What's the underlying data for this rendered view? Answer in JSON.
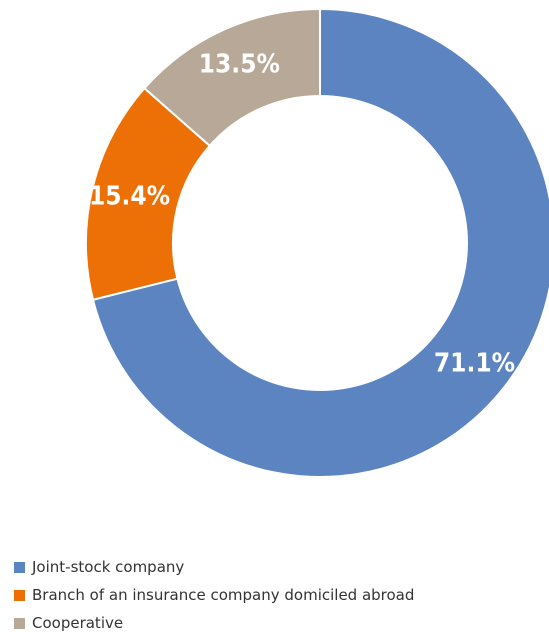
{
  "chart_data": {
    "type": "pie",
    "donut": true,
    "start": "top",
    "direction": "clockwise",
    "legend_position": "bottom-left",
    "slices": [
      {
        "label": "Joint-stock company",
        "value": 71.1,
        "display": "71.1%",
        "color": "#5b84c1"
      },
      {
        "label": "Branch of an insurance company domiciled abroad",
        "value": 15.4,
        "display": "15.4%",
        "color": "#ec7005"
      },
      {
        "label": "Cooperative",
        "value": 13.5,
        "display": "13.5%",
        "color": "#b7a897"
      }
    ]
  }
}
